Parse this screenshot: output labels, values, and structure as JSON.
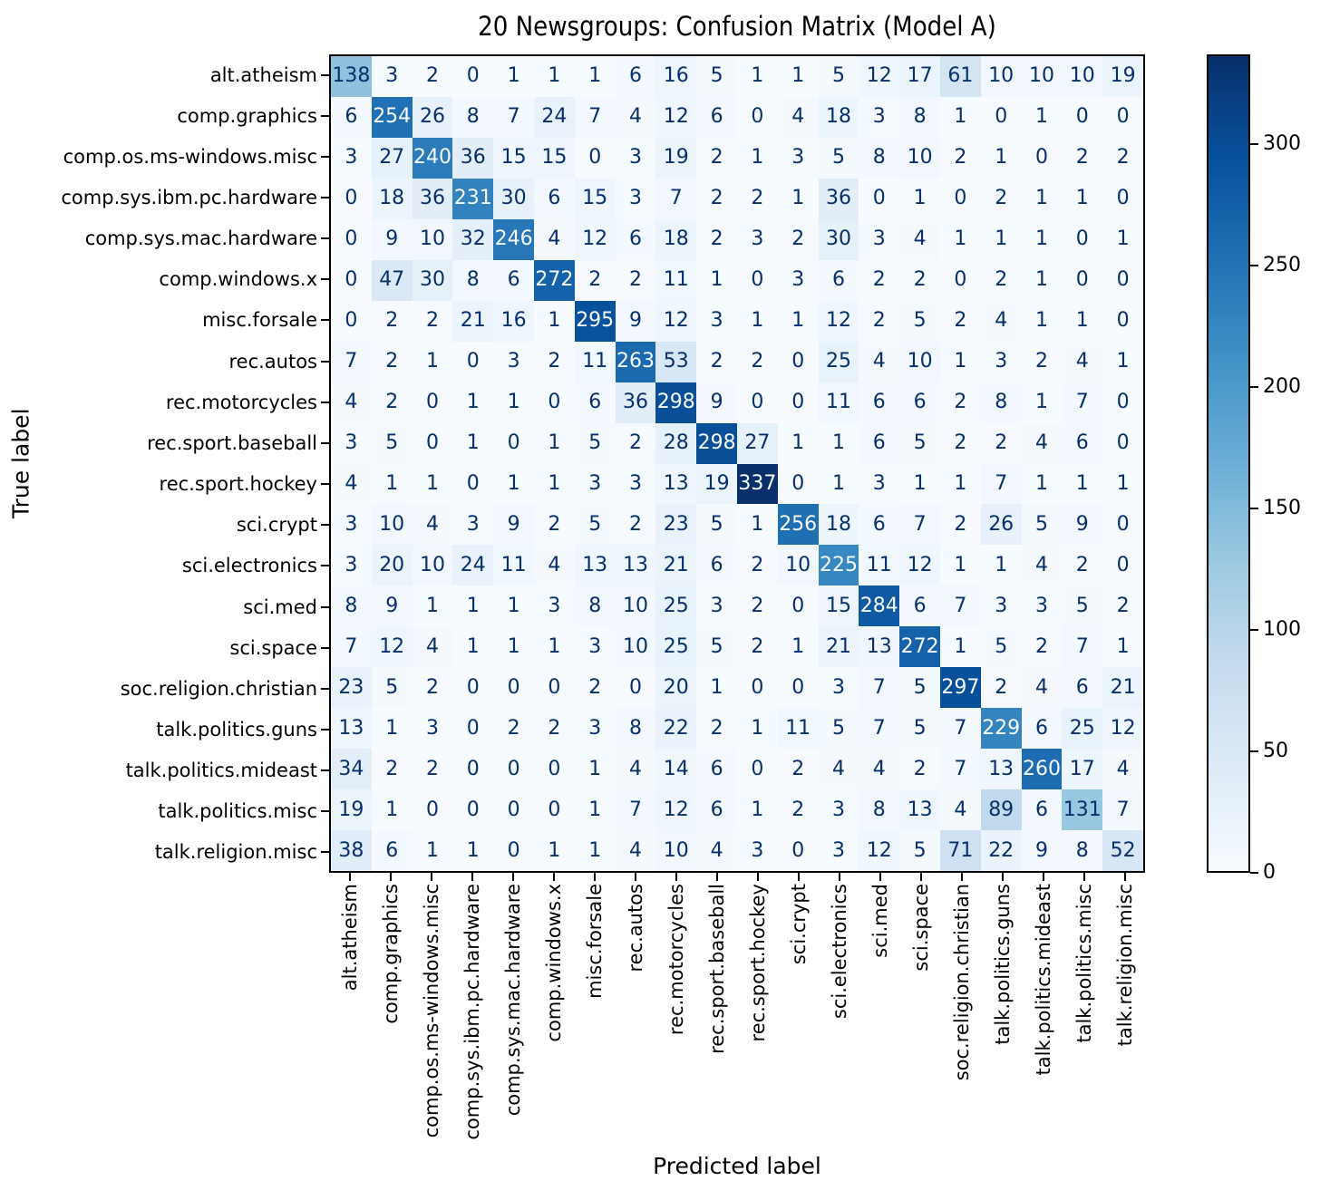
{
  "chart_data": {
    "type": "heatmap",
    "title": "20 Newsgroups: Confusion Matrix (Model A)",
    "xlabel": "Predicted label",
    "ylabel": "True label",
    "categories": [
      "alt.atheism",
      "comp.graphics",
      "comp.os.ms-windows.misc",
      "comp.sys.ibm.pc.hardware",
      "comp.sys.mac.hardware",
      "comp.windows.x",
      "misc.forsale",
      "rec.autos",
      "rec.motorcycles",
      "rec.sport.baseball",
      "rec.sport.hockey",
      "sci.crypt",
      "sci.electronics",
      "sci.med",
      "sci.space",
      "soc.religion.christian",
      "talk.politics.guns",
      "talk.politics.mideast",
      "talk.politics.misc",
      "talk.religion.misc"
    ],
    "matrix": [
      [
        138,
        3,
        2,
        0,
        1,
        1,
        1,
        6,
        16,
        5,
        1,
        1,
        5,
        12,
        17,
        61,
        10,
        10,
        10,
        19
      ],
      [
        6,
        254,
        26,
        8,
        7,
        24,
        7,
        4,
        12,
        6,
        0,
        4,
        18,
        3,
        8,
        1,
        0,
        1,
        0,
        0
      ],
      [
        3,
        27,
        240,
        36,
        15,
        15,
        0,
        3,
        19,
        2,
        1,
        3,
        5,
        8,
        10,
        2,
        1,
        0,
        2,
        2
      ],
      [
        0,
        18,
        36,
        231,
        30,
        6,
        15,
        3,
        7,
        2,
        2,
        1,
        36,
        0,
        1,
        0,
        2,
        1,
        1,
        0
      ],
      [
        0,
        9,
        10,
        32,
        246,
        4,
        12,
        6,
        18,
        2,
        3,
        2,
        30,
        3,
        4,
        1,
        1,
        1,
        0,
        1
      ],
      [
        0,
        47,
        30,
        8,
        6,
        272,
        2,
        2,
        11,
        1,
        0,
        3,
        6,
        2,
        2,
        0,
        2,
        1,
        0,
        0
      ],
      [
        0,
        2,
        2,
        21,
        16,
        1,
        295,
        9,
        12,
        3,
        1,
        1,
        12,
        2,
        5,
        2,
        4,
        1,
        1,
        0
      ],
      [
        7,
        2,
        1,
        0,
        3,
        2,
        11,
        263,
        53,
        2,
        2,
        0,
        25,
        4,
        10,
        1,
        3,
        2,
        4,
        1
      ],
      [
        4,
        2,
        0,
        1,
        1,
        0,
        6,
        36,
        298,
        9,
        0,
        0,
        11,
        6,
        6,
        2,
        8,
        1,
        7,
        0
      ],
      [
        3,
        5,
        0,
        1,
        0,
        1,
        5,
        2,
        28,
        298,
        27,
        1,
        1,
        6,
        5,
        2,
        2,
        4,
        6,
        0
      ],
      [
        4,
        1,
        1,
        0,
        1,
        1,
        3,
        3,
        13,
        19,
        337,
        0,
        1,
        3,
        1,
        1,
        7,
        1,
        1,
        1
      ],
      [
        3,
        10,
        4,
        3,
        9,
        2,
        5,
        2,
        23,
        5,
        1,
        256,
        18,
        6,
        7,
        2,
        26,
        5,
        9,
        0
      ],
      [
        3,
        20,
        10,
        24,
        11,
        4,
        13,
        13,
        21,
        6,
        2,
        10,
        225,
        11,
        12,
        1,
        1,
        4,
        2,
        0
      ],
      [
        8,
        9,
        1,
        1,
        1,
        3,
        8,
        10,
        25,
        3,
        2,
        0,
        15,
        284,
        6,
        7,
        3,
        3,
        5,
        2
      ],
      [
        7,
        12,
        4,
        1,
        1,
        1,
        3,
        10,
        25,
        5,
        2,
        1,
        21,
        13,
        272,
        1,
        5,
        2,
        7,
        1
      ],
      [
        23,
        5,
        2,
        0,
        0,
        0,
        2,
        0,
        20,
        1,
        0,
        0,
        3,
        7,
        5,
        297,
        2,
        4,
        6,
        21
      ],
      [
        13,
        1,
        3,
        0,
        2,
        2,
        3,
        8,
        22,
        2,
        1,
        11,
        5,
        7,
        5,
        7,
        229,
        6,
        25,
        12
      ],
      [
        34,
        2,
        2,
        0,
        0,
        0,
        1,
        4,
        14,
        6,
        0,
        2,
        4,
        4,
        2,
        7,
        13,
        260,
        17,
        4
      ],
      [
        19,
        1,
        0,
        0,
        0,
        0,
        1,
        7,
        12,
        6,
        1,
        2,
        3,
        8,
        13,
        4,
        89,
        6,
        131,
        7
      ],
      [
        38,
        6,
        1,
        1,
        0,
        1,
        1,
        4,
        10,
        4,
        3,
        0,
        3,
        12,
        5,
        71,
        22,
        9,
        8,
        52
      ]
    ],
    "vmin": 0,
    "vmax": 337,
    "colormap": "Blues",
    "colormap_anchors": [
      [
        0.0,
        "#f7fbff"
      ],
      [
        0.125,
        "#deebf7"
      ],
      [
        0.25,
        "#c6dbef"
      ],
      [
        0.375,
        "#9ecae1"
      ],
      [
        0.5,
        "#6baed6"
      ],
      [
        0.625,
        "#4292c6"
      ],
      [
        0.75,
        "#2171b5"
      ],
      [
        0.875,
        "#08519c"
      ],
      [
        1.0,
        "#08306b"
      ]
    ],
    "colorbar_ticks": [
      0,
      50,
      100,
      150,
      200,
      250,
      300
    ],
    "text_threshold": 168.5,
    "cell_text_color_low": "#08306b",
    "cell_text_color_high": "#f7fbff",
    "grid": false,
    "legend_position": "colorbar-right"
  }
}
